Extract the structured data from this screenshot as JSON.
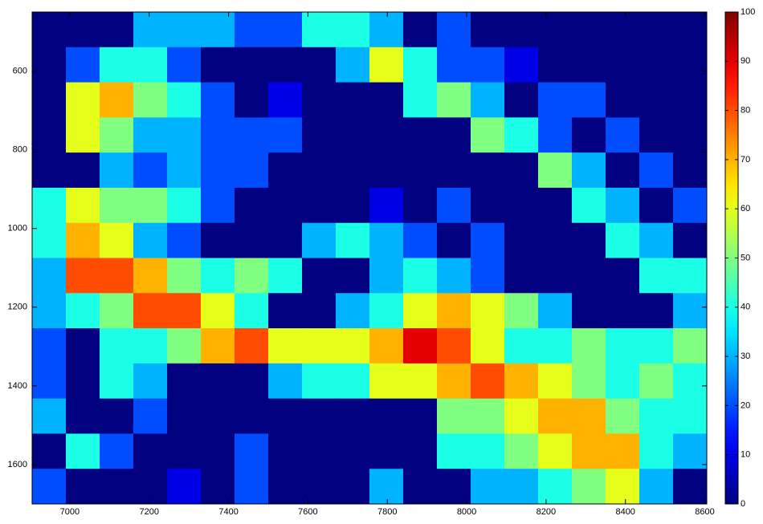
{
  "chart_data": {
    "type": "heatmap",
    "colormap": "jet",
    "clim": [
      0,
      100
    ],
    "xlim": [
      6905,
      8605
    ],
    "ylim": [
      450,
      1700
    ],
    "y_reversed": true,
    "xticks": [
      7000,
      7200,
      7400,
      7600,
      7800,
      8000,
      8200,
      8400,
      8600
    ],
    "yticks": [
      600,
      800,
      1000,
      1200,
      1400,
      1600
    ],
    "colorbar_ticks": [
      0,
      10,
      20,
      30,
      40,
      50,
      60,
      70,
      80,
      90,
      100
    ],
    "z": [
      [
        0,
        0,
        0,
        30,
        30,
        30,
        20,
        20,
        40,
        40,
        30,
        0,
        20,
        0,
        0,
        0,
        0,
        0,
        0,
        0
      ],
      [
        0,
        20,
        40,
        40,
        20,
        0,
        0,
        0,
        0,
        30,
        60,
        40,
        20,
        20,
        10,
        0,
        0,
        0,
        0,
        0
      ],
      [
        0,
        60,
        70,
        50,
        40,
        20,
        0,
        10,
        0,
        0,
        0,
        40,
        50,
        30,
        0,
        20,
        20,
        0,
        0,
        0
      ],
      [
        0,
        60,
        50,
        30,
        30,
        20,
        20,
        20,
        0,
        0,
        0,
        0,
        0,
        50,
        40,
        20,
        0,
        20,
        0,
        0
      ],
      [
        0,
        0,
        30,
        20,
        30,
        20,
        20,
        0,
        0,
        0,
        0,
        0,
        0,
        0,
        0,
        50,
        30,
        0,
        20,
        0
      ],
      [
        40,
        60,
        50,
        50,
        40,
        20,
        0,
        0,
        0,
        0,
        10,
        0,
        20,
        0,
        0,
        0,
        40,
        30,
        0,
        20
      ],
      [
        40,
        70,
        60,
        30,
        20,
        0,
        0,
        0,
        30,
        40,
        30,
        20,
        0,
        20,
        0,
        0,
        0,
        40,
        30,
        0
      ],
      [
        30,
        80,
        80,
        70,
        50,
        40,
        50,
        40,
        0,
        0,
        30,
        40,
        30,
        20,
        0,
        0,
        0,
        0,
        40,
        40
      ],
      [
        30,
        40,
        50,
        80,
        80,
        60,
        40,
        0,
        0,
        30,
        40,
        60,
        70,
        60,
        50,
        30,
        0,
        0,
        0,
        30
      ],
      [
        20,
        0,
        40,
        40,
        50,
        70,
        80,
        60,
        60,
        60,
        70,
        90,
        80,
        60,
        40,
        40,
        50,
        40,
        40,
        50
      ],
      [
        20,
        0,
        40,
        30,
        0,
        0,
        0,
        30,
        40,
        40,
        60,
        60,
        70,
        80,
        70,
        60,
        50,
        40,
        50,
        40
      ],
      [
        30,
        0,
        0,
        20,
        0,
        0,
        0,
        0,
        0,
        0,
        0,
        0,
        50,
        50,
        60,
        70,
        70,
        50,
        40,
        40
      ],
      [
        0,
        40,
        20,
        0,
        0,
        0,
        20,
        0,
        0,
        0,
        0,
        0,
        40,
        40,
        50,
        60,
        70,
        70,
        40,
        30
      ],
      [
        20,
        0,
        0,
        0,
        10,
        0,
        20,
        0,
        0,
        0,
        30,
        0,
        0,
        30,
        30,
        40,
        50,
        60,
        30,
        0
      ]
    ]
  }
}
